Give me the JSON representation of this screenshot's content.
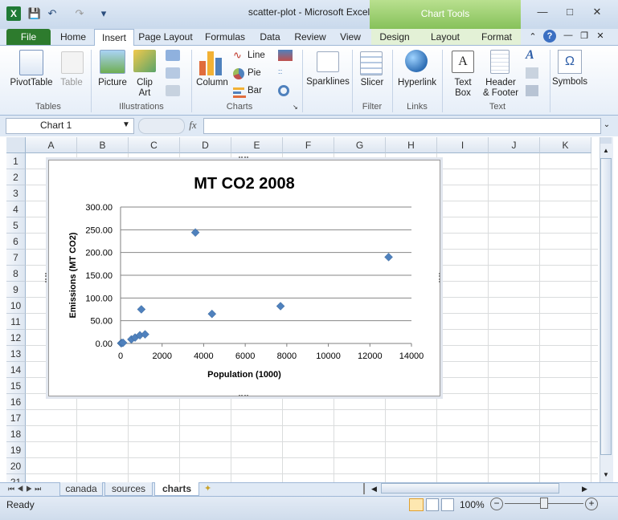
{
  "window": {
    "title": "scatter-plot  -  Microsoft Excel",
    "context_tab_group": "Chart Tools"
  },
  "tabs": [
    "File",
    "Home",
    "Insert",
    "Page Layout",
    "Formulas",
    "Data",
    "Review",
    "View"
  ],
  "chart_tabs": [
    "Design",
    "Layout",
    "Format"
  ],
  "ribbon": {
    "tables": {
      "group": "Tables",
      "pivot": "PivotTable",
      "table": "Table"
    },
    "illustrations": {
      "group": "Illustrations",
      "picture": "Picture",
      "clipart1": "Clip",
      "clipart2": "Art"
    },
    "charts": {
      "group": "Charts",
      "column": "Column",
      "line": "Line",
      "pie": "Pie",
      "bar": "Bar"
    },
    "sparklines": {
      "label": "Sparklines"
    },
    "filter": {
      "group": "Filter",
      "slicer": "Slicer"
    },
    "links": {
      "group": "Links",
      "hyperlink": "Hyperlink"
    },
    "text": {
      "group": "Text",
      "textbox1": "Text",
      "textbox2": "Box",
      "header1": "Header",
      "header2": "& Footer"
    },
    "symbols": {
      "label": "Symbols",
      "omega": "Ω"
    }
  },
  "formula_bar": {
    "name_box": "Chart 1",
    "fx": "fx",
    "value": ""
  },
  "columns": [
    "A",
    "B",
    "C",
    "D",
    "E",
    "F",
    "G",
    "H",
    "I",
    "J",
    "K"
  ],
  "rows": [
    "1",
    "2",
    "3",
    "4",
    "5",
    "6",
    "7",
    "8",
    "9",
    "10",
    "11",
    "12",
    "13",
    "14",
    "15",
    "16",
    "17",
    "18",
    "19",
    "20",
    "21"
  ],
  "sheets": [
    "canada",
    "sources",
    "charts"
  ],
  "active_sheet": "charts",
  "status": {
    "ready": "Ready",
    "zoom": "100%"
  },
  "colors": {
    "marker": "#4f81bd",
    "file_tab": "#2d7b2d",
    "chart_tools": "#86c15a"
  },
  "chart_data": {
    "type": "scatter",
    "title": "MT CO2 2008",
    "xlabel": "Population (1000)",
    "ylabel": "Emissions (MT CO2)",
    "xlim": [
      0,
      14000
    ],
    "ylim": [
      0,
      300
    ],
    "x_ticks": [
      "0",
      "2000",
      "4000",
      "6000",
      "8000",
      "10000",
      "12000",
      "14000"
    ],
    "y_ticks": [
      "0.00",
      "50.00",
      "100.00",
      "150.00",
      "200.00",
      "250.00",
      "300.00"
    ],
    "grid": "horizontal",
    "legend": "none",
    "points": [
      {
        "x": 30,
        "y": 0.5
      },
      {
        "x": 60,
        "y": 1.0
      },
      {
        "x": 120,
        "y": 1.5
      },
      {
        "x": 520,
        "y": 9
      },
      {
        "x": 700,
        "y": 13
      },
      {
        "x": 930,
        "y": 18
      },
      {
        "x": 1180,
        "y": 20
      },
      {
        "x": 1000,
        "y": 75
      },
      {
        "x": 3600,
        "y": 244
      },
      {
        "x": 4400,
        "y": 65
      },
      {
        "x": 7700,
        "y": 82
      },
      {
        "x": 12900,
        "y": 190
      }
    ]
  }
}
